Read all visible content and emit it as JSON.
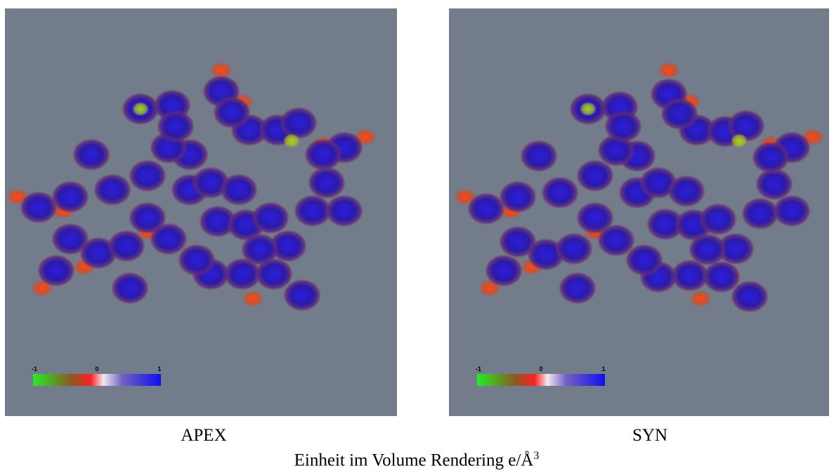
{
  "panels": [
    {
      "label": "APEX",
      "colorbar_ticks": [
        -1,
        0,
        1
      ]
    },
    {
      "label": "SYN",
      "colorbar_ticks": [
        -1,
        0,
        1
      ]
    }
  ],
  "caption": {
    "text": "Einheit im Volume Rendering e/Å",
    "superscript": "3"
  }
}
